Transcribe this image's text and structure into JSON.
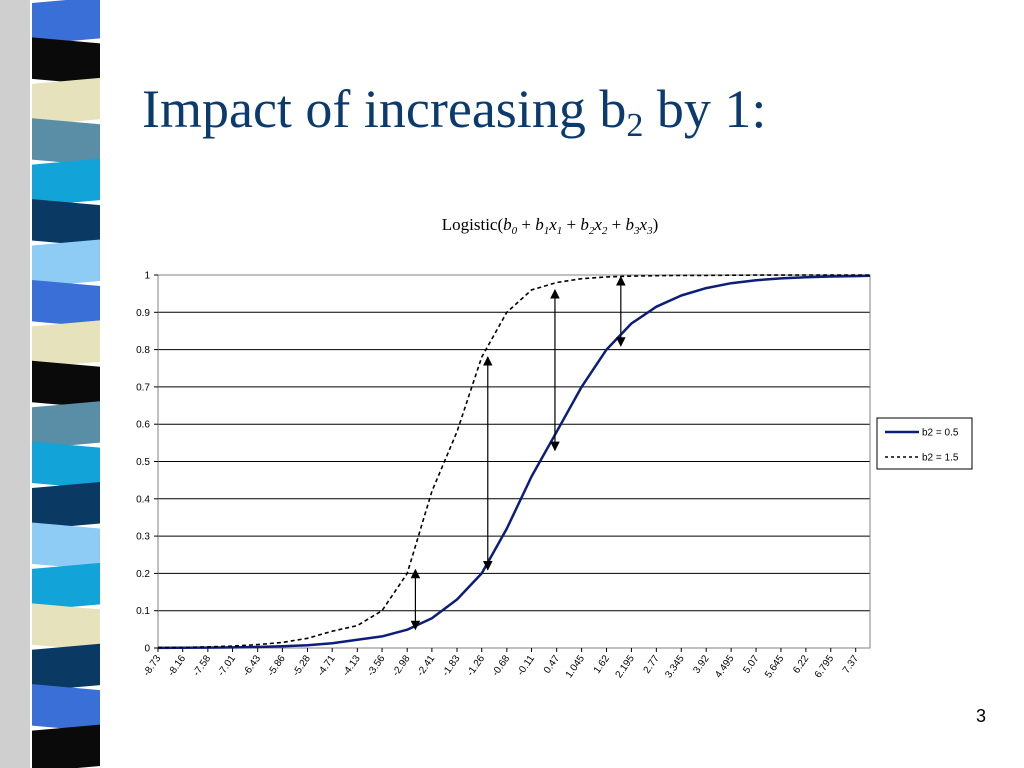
{
  "slide": {
    "title_main": "Impact of increasing b",
    "title_sub": "2",
    "title_tail": " by 1:",
    "page_number": "3"
  },
  "sidebar_colors": [
    "#3a6fd8",
    "#0a0a0a",
    "#e6e2bb",
    "#5a8ea6",
    "#12a3d8",
    "#0a3a63",
    "#8ecbf5",
    "#3a6fd8",
    "#e6e2bb",
    "#0a0a0a",
    "#5a8ea6",
    "#12a3d8",
    "#0a3a63",
    "#8ecbf5",
    "#12a3d8",
    "#e6e2bb",
    "#0a3a63",
    "#3a6fd8",
    "#0a0a0a"
  ],
  "chart_data": {
    "type": "line",
    "title_parts": [
      {
        "t": "Logistic(",
        "i": false
      },
      {
        "t": "b",
        "i": true
      },
      {
        "t": "0",
        "i": true,
        "sub": true
      },
      {
        "t": " + ",
        "i": false
      },
      {
        "t": "b",
        "i": true
      },
      {
        "t": "1",
        "i": true,
        "sub": true
      },
      {
        "t": "x",
        "i": true
      },
      {
        "t": "1",
        "i": true,
        "sub": true
      },
      {
        "t": " + ",
        "i": false
      },
      {
        "t": "b",
        "i": true
      },
      {
        "t": "2",
        "i": true,
        "sub": true
      },
      {
        "t": "x",
        "i": true
      },
      {
        "t": "2",
        "i": true,
        "sub": true
      },
      {
        "t": " + ",
        "i": false
      },
      {
        "t": "b",
        "i": true
      },
      {
        "t": "3",
        "i": true,
        "sub": true
      },
      {
        "t": "x",
        "i": true
      },
      {
        "t": "3",
        "i": true,
        "sub": true
      },
      {
        "t": ")",
        "i": false
      }
    ],
    "x_tick_labels": [
      "-8.73",
      "-8.16",
      "-7.58",
      "-7.01",
      "-6.43",
      "-5.86",
      "-5.28",
      "-4.71",
      "-4.13",
      "-3.56",
      "-2.98",
      "-2.41",
      "-1.83",
      "-1.26",
      "-0.68",
      "-0.11",
      "0.47",
      "1.045",
      "1.62",
      "2.195",
      "2.77",
      "3.345",
      "3.92",
      "4.495",
      "5.07",
      "5.645",
      "6.22",
      "6.795",
      "7.37"
    ],
    "xlim": [
      -8.73,
      7.7
    ],
    "ylim": [
      0,
      1
    ],
    "y_ticks": [
      0,
      0.1,
      0.2,
      0.3,
      0.4,
      0.5,
      0.6,
      0.7,
      0.8,
      0.9,
      1
    ],
    "y_tick_labels": [
      "0",
      "0.1",
      "0.2",
      "0.3",
      "0.4",
      "0.5",
      "0.6",
      "0.7",
      "0.8",
      "0.9",
      "1"
    ],
    "grid": true,
    "legend_position": "right",
    "series": [
      {
        "name": "b2 = 0.5",
        "style": "solid",
        "color": "#0d1d7a",
        "x": [
          -8.73,
          -8.16,
          -7.58,
          -7.01,
          -6.43,
          -5.86,
          -5.28,
          -4.71,
          -4.13,
          -3.56,
          -2.98,
          -2.41,
          -1.83,
          -1.26,
          -0.68,
          -0.11,
          0.47,
          1.045,
          1.62,
          2.195,
          2.77,
          3.345,
          3.92,
          4.495,
          5.07,
          5.645,
          6.22,
          6.795,
          7.37,
          7.7
        ],
        "y": [
          0.0004,
          0.0006,
          0.001,
          0.0016,
          0.0027,
          0.0045,
          0.0075,
          0.013,
          0.022,
          0.031,
          0.049,
          0.08,
          0.13,
          0.2,
          0.32,
          0.46,
          0.58,
          0.7,
          0.8,
          0.87,
          0.915,
          0.945,
          0.965,
          0.978,
          0.986,
          0.991,
          0.994,
          0.996,
          0.997,
          0.998
        ]
      },
      {
        "name": "b2 = 1.5",
        "style": "dashed",
        "color": "#000000",
        "x": [
          -8.73,
          -8.16,
          -7.58,
          -7.01,
          -6.43,
          -5.86,
          -5.28,
          -4.71,
          -4.13,
          -3.56,
          -2.98,
          -2.41,
          -1.83,
          -1.26,
          -0.68,
          -0.11,
          0.47,
          1.045,
          1.62,
          2.195,
          2.77,
          3.345,
          3.92,
          4.495,
          5.07,
          5.645,
          6.22,
          6.795,
          7.37,
          7.7
        ],
        "y": [
          0.001,
          0.0017,
          0.003,
          0.005,
          0.009,
          0.015,
          0.026,
          0.045,
          0.06,
          0.1,
          0.2,
          0.42,
          0.58,
          0.78,
          0.9,
          0.96,
          0.98,
          0.99,
          0.995,
          0.997,
          0.998,
          0.999,
          0.999,
          0.9995,
          0.9997,
          0.9998,
          0.9999,
          0.9999,
          1.0,
          1.0
        ]
      }
    ],
    "arrows": [
      {
        "x": -2.79,
        "from": 0.05,
        "to": 0.21
      },
      {
        "x": -1.12,
        "from": 0.21,
        "to": 0.78
      },
      {
        "x": 0.43,
        "from": 0.53,
        "to": 0.96
      },
      {
        "x": 1.95,
        "from": 0.81,
        "to": 0.995
      }
    ]
  }
}
